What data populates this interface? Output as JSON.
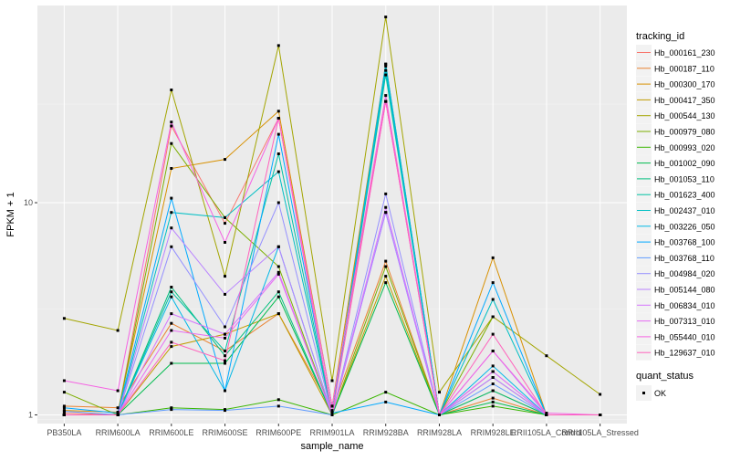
{
  "chart_data": {
    "type": "line",
    "xlabel": "sample_name",
    "ylabel": "FPKM + 1",
    "y_scale": "log10",
    "ylim": [
      0.91,
      85
    ],
    "y_ticks": [
      1,
      10
    ],
    "y_tick_labels": [
      "1",
      "10"
    ],
    "grid": true,
    "legend_position": "right",
    "categories": [
      "PB350LA",
      "RRIM600LA",
      "RRIM600LE",
      "RRIM600SE",
      "RRIM600PE",
      "RRIM901LA",
      "RRIM928BA",
      "RRIM928LA",
      "RRIM928LE",
      "RRII105LA_Control",
      "RRII105LA_Stressed"
    ],
    "legend_title": "tracking_id",
    "shape_legend": {
      "title": "quant_status",
      "label": "OK"
    },
    "series": [
      {
        "name": "Hb_000161_230",
        "color": "#F8766D",
        "values": [
          1.02,
          1.0,
          23.0,
          8.0,
          25.0,
          1.1,
          30.0,
          1.0,
          1.6,
          null,
          null
        ]
      },
      {
        "name": "Hb_000187_110",
        "color": "#EA8331",
        "values": [
          1.1,
          1.08,
          2.7,
          2.0,
          3.0,
          1.05,
          5.3,
          1.0,
          1.2,
          1.0,
          1.0
        ]
      },
      {
        "name": "Hb_000300_170",
        "color": "#D89000",
        "values": [
          1.05,
          1.03,
          14.5,
          16.0,
          27.0,
          1.1,
          45.0,
          1.0,
          5.5,
          1.0,
          1.0
        ]
      },
      {
        "name": "Hb_000417_350",
        "color": "#C09B00",
        "values": [
          1.0,
          1.0,
          2.1,
          2.4,
          3.0,
          1.0,
          4.5,
          1.0,
          1.3,
          1.0,
          1.0
        ]
      },
      {
        "name": "Hb_000544_130",
        "color": "#A3A500",
        "values": [
          2.85,
          2.5,
          34.0,
          4.5,
          55.0,
          1.45,
          75.0,
          1.28,
          2.9,
          1.9,
          1.25
        ]
      },
      {
        "name": "Hb_000979_080",
        "color": "#7CAE00",
        "values": [
          1.28,
          1.0,
          19.0,
          8.5,
          5.0,
          1.0,
          5.0,
          1.0,
          2.9,
          null,
          null
        ]
      },
      {
        "name": "Hb_000993_020",
        "color": "#39B600",
        "values": [
          1.0,
          1.0,
          1.08,
          1.06,
          1.18,
          1.0,
          1.28,
          1.0,
          1.1,
          1.0,
          1.0
        ]
      },
      {
        "name": "Hb_001002_090",
        "color": "#00BB4E",
        "values": [
          1.0,
          1.0,
          1.75,
          1.75,
          3.6,
          1.0,
          4.2,
          1.0,
          1.15,
          1.0,
          1.0
        ]
      },
      {
        "name": "Hb_001053_110",
        "color": "#00BF7D",
        "values": [
          1.0,
          1.0,
          4.0,
          1.9,
          3.8,
          1.0,
          44.0,
          1.0,
          1.3,
          1.0,
          1.0
        ]
      },
      {
        "name": "Hb_001623_400",
        "color": "#00C1A3",
        "values": [
          1.0,
          1.0,
          3.8,
          2.0,
          17.0,
          1.0,
          40.0,
          1.0,
          1.5,
          1.0,
          1.0
        ]
      },
      {
        "name": "Hb_002437_010",
        "color": "#00BFC4",
        "values": [
          1.0,
          1.0,
          9.0,
          8.5,
          14.0,
          1.0,
          42.0,
          1.0,
          3.5,
          1.0,
          1.0
        ]
      },
      {
        "name": "Hb_003226_050",
        "color": "#00B8E7",
        "values": [
          1.0,
          1.0,
          3.6,
          1.3,
          6.2,
          1.0,
          45.0,
          1.0,
          1.7,
          1.0,
          1.0
        ]
      },
      {
        "name": "Hb_003768_100",
        "color": "#00A9FF",
        "values": [
          1.08,
          1.02,
          10.5,
          1.3,
          21.0,
          1.02,
          1.15,
          1.0,
          4.2,
          1.0,
          1.0
        ]
      },
      {
        "name": "Hb_003768_110",
        "color": "#619CFF",
        "values": [
          1.04,
          1.0,
          1.06,
          1.05,
          1.1,
          1.0,
          9.0,
          1.0,
          1.4,
          1.0,
          1.0
        ]
      },
      {
        "name": "Hb_004984_020",
        "color": "#9590FF",
        "values": [
          1.0,
          1.0,
          6.2,
          2.6,
          10.0,
          1.0,
          11.0,
          1.0,
          1.6,
          1.0,
          1.0
        ]
      },
      {
        "name": "Hb_005144_080",
        "color": "#B983FF",
        "values": [
          1.0,
          1.0,
          7.6,
          3.7,
          6.2,
          1.0,
          9.0,
          1.0,
          2.0,
          1.0,
          1.0
        ]
      },
      {
        "name": "Hb_006834_010",
        "color": "#D575FE",
        "values": [
          1.0,
          1.0,
          3.0,
          2.4,
          4.7,
          1.0,
          9.5,
          1.0,
          1.5,
          1.0,
          1.0
        ]
      },
      {
        "name": "Hb_007313_010",
        "color": "#E76BF3",
        "values": [
          1.0,
          1.0,
          2.5,
          2.3,
          4.6,
          1.0,
          30.0,
          1.0,
          1.6,
          1.0,
          1.0
        ]
      },
      {
        "name": "Hb_055440_010",
        "color": "#F563E3",
        "values": [
          1.45,
          1.3,
          24.0,
          6.5,
          25.0,
          1.1,
          32.0,
          1.0,
          2.0,
          1.02,
          1.0
        ]
      },
      {
        "name": "Hb_129637_010",
        "color": "#FF62BC",
        "values": [
          1.0,
          1.0,
          2.2,
          1.8,
          25.0,
          1.0,
          30.0,
          1.0,
          2.4,
          1.0,
          1.0
        ]
      }
    ]
  }
}
